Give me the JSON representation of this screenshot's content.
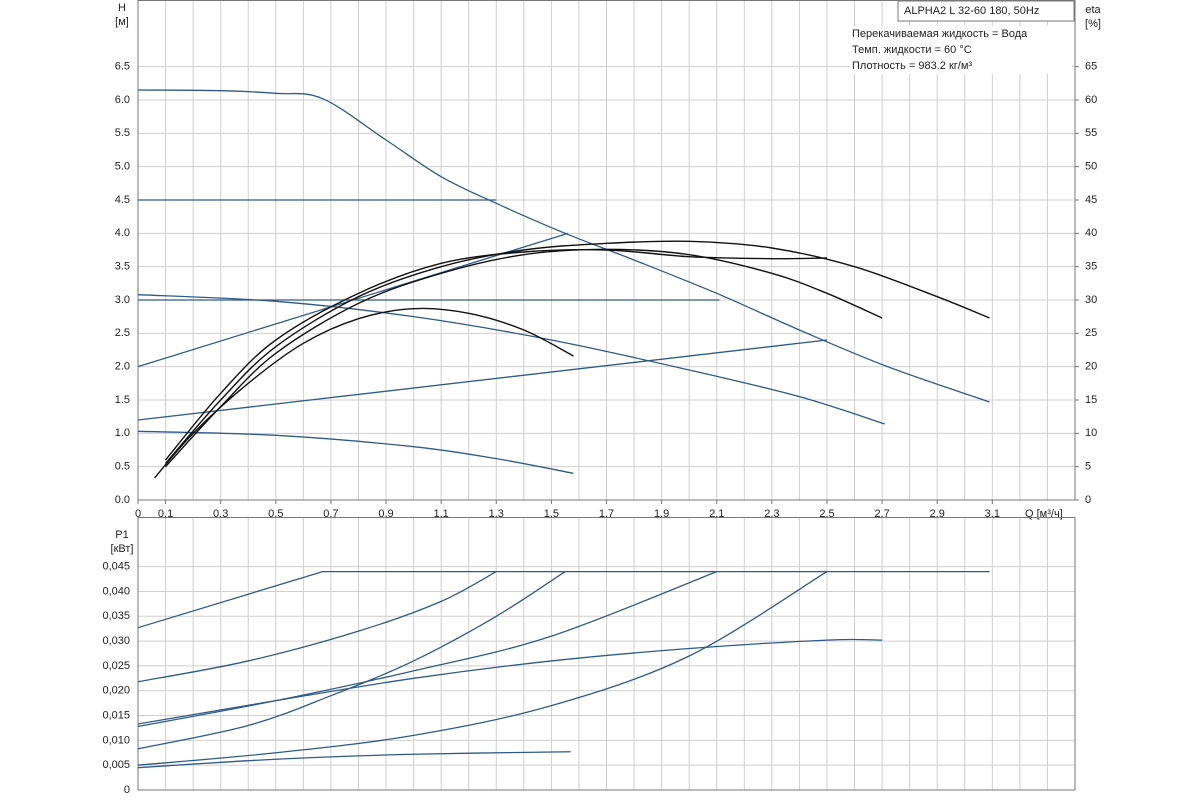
{
  "chart_data": [
    {
      "type": "line",
      "y_label": "H",
      "y_unit": "[м]",
      "y2_label": "eta",
      "y2_unit": "[%]",
      "x_label": "Q [м³/ч]",
      "info_title": "ALPHA2 L 32-60 180, 50Hz",
      "info_lines": [
        "Перекачиваемая жидкость = Вода",
        "Темп. жидкости = 60 °C",
        "Плотность = 983.2 кг/м³"
      ],
      "xlim": [
        0,
        3.4
      ],
      "ylim": [
        0,
        7.5
      ],
      "y2lim": [
        0,
        75
      ],
      "xticks": [
        0,
        {
          "value": 0.1,
          "label": "0,1"
        },
        {
          "value": 0.3,
          "label": "0,3"
        },
        {
          "value": 0.5,
          "label": "0,5"
        },
        {
          "value": 0.7,
          "label": "0,7"
        },
        {
          "value": 0.9,
          "label": "0,9"
        },
        {
          "value": 1.1,
          "label": "1,1"
        },
        {
          "value": 1.3,
          "label": "1,3"
        },
        {
          "value": 1.5,
          "label": "1,5"
        },
        {
          "value": 1.7,
          "label": "1,7"
        },
        {
          "value": 1.9,
          "label": "1,9"
        },
        {
          "value": 2.1,
          "label": "2,1"
        },
        {
          "value": 2.3,
          "label": "2,3"
        },
        {
          "value": 2.5,
          "label": "2,5"
        },
        {
          "value": 2.7,
          "label": "2,7"
        },
        {
          "value": 2.9,
          "label": "2,9"
        },
        {
          "value": 3.1,
          "label": "3,1"
        }
      ],
      "xgrid": [
        0.1,
        0.2,
        0.3,
        0.4,
        0.5,
        0.6,
        0.7,
        0.8,
        0.9,
        1.0,
        1.1,
        1.2,
        1.3,
        1.4,
        1.5,
        1.6,
        1.7,
        1.8,
        1.9,
        2.0,
        2.1,
        2.2,
        2.3,
        2.4,
        2.5,
        2.6,
        2.7,
        2.8,
        2.9,
        3.0,
        3.1,
        3.2,
        3.3
      ],
      "yticks": [
        {
          "value": 0,
          "label": "0.0"
        },
        0.5,
        {
          "value": 1,
          "label": "1.0"
        },
        1.5,
        {
          "value": 2,
          "label": "2.0"
        },
        2.5,
        {
          "value": 3,
          "label": "3.0"
        },
        3.5,
        {
          "value": 4,
          "label": "4.0"
        },
        4.5,
        {
          "value": 5,
          "label": "5.0"
        },
        5.5,
        {
          "value": 6,
          "label": "6.0"
        },
        6.5
      ],
      "y2ticks": [
        0,
        5,
        10,
        15,
        20,
        25,
        30,
        35,
        40,
        45,
        50,
        55,
        60,
        65
      ],
      "grid": true,
      "series": [
        {
          "color": "#2f5a86",
          "x": [
            0,
            0.3,
            0.5,
            0.67,
            0.9,
            1.1,
            1.3,
            1.55,
            1.8,
            2.1,
            2.4,
            2.72,
            3.09
          ],
          "values": [
            6.15,
            6.14,
            6.1,
            6.02,
            5.4,
            4.85,
            4.45,
            4.0,
            3.6,
            3.1,
            2.55,
            2.0,
            1.47
          ]
        },
        {
          "color": "#2f5a86",
          "x": [
            0,
            1.3
          ],
          "values": [
            4.5,
            4.5
          ]
        },
        {
          "color": "#2f5a86",
          "x": [
            0,
            2.11
          ],
          "values": [
            3.0,
            3.0
          ]
        },
        {
          "color": "#2f5a86",
          "x": [
            0,
            1.56
          ],
          "values": [
            2.0,
            4.0
          ]
        },
        {
          "color": "#2f5a86",
          "x": [
            0,
            2.5
          ],
          "values": [
            1.2,
            2.4
          ]
        },
        {
          "color": "#2f5a86",
          "x": [
            0,
            0.5,
            1.0,
            1.5,
            2.0,
            2.4,
            2.71
          ],
          "values": [
            3.08,
            2.98,
            2.75,
            2.4,
            1.95,
            1.55,
            1.14
          ]
        },
        {
          "color": "#2f5a86",
          "x": [
            0,
            0.5,
            1.0,
            1.3,
            1.58
          ],
          "values": [
            1.03,
            0.97,
            0.8,
            0.62,
            0.4
          ]
        },
        {
          "color": "#111111",
          "axis": "y2",
          "x": [
            0.06,
            0.2,
            0.4,
            0.6,
            0.8,
            1.0,
            1.2,
            1.4,
            1.58
          ],
          "values": [
            3.3,
            10,
            17.5,
            23.5,
            27.2,
            28.7,
            28,
            25.5,
            21.6
          ]
        },
        {
          "color": "#111111",
          "axis": "y2",
          "x": [
            0.1,
            0.3,
            0.5,
            0.8,
            1.1,
            1.4,
            1.7,
            2.0,
            2.3,
            2.5,
            2.7
          ],
          "values": [
            5,
            14,
            22,
            29.5,
            34,
            36.8,
            37.6,
            36.8,
            34,
            31,
            27.3
          ]
        },
        {
          "color": "#111111",
          "axis": "y2",
          "x": [
            0.1,
            0.3,
            0.5,
            0.8,
            1.1,
            1.4,
            1.7,
            2.0,
            2.3,
            2.5
          ],
          "values": [
            6,
            16,
            24,
            31,
            35.5,
            37.2,
            37.5,
            36.5,
            36.2,
            36.3
          ]
        },
        {
          "color": "#111111",
          "axis": "y2",
          "x": [
            0.1,
            0.3,
            0.5,
            0.8,
            1.1,
            1.4,
            1.7,
            2.0,
            2.3,
            2.6,
            2.9,
            3.09
          ],
          "values": [
            5.5,
            15,
            23,
            30.5,
            35,
            37.5,
            38.5,
            38.8,
            37.8,
            35,
            30.5,
            27.3
          ]
        }
      ]
    },
    {
      "type": "line",
      "y_label": "P1",
      "y_unit": "[кВт]",
      "xlim": [
        0,
        3.4
      ],
      "ylim": [
        0,
        0.055
      ],
      "xgrid": [
        0.1,
        0.2,
        0.3,
        0.4,
        0.5,
        0.6,
        0.7,
        0.8,
        0.9,
        1.0,
        1.1,
        1.2,
        1.3,
        1.4,
        1.5,
        1.6,
        1.7,
        1.8,
        1.9,
        2.0,
        2.1,
        2.2,
        2.3,
        2.4,
        2.5,
        2.6,
        2.7,
        2.8,
        2.9,
        3.0,
        3.1,
        3.2,
        3.3
      ],
      "yticks": [
        0,
        {
          "value": 0.005,
          "label": "0,005"
        },
        {
          "value": 0.01,
          "label": "0,010"
        },
        {
          "value": 0.015,
          "label": "0,015"
        },
        {
          "value": 0.02,
          "label": "0,020"
        },
        {
          "value": 0.025,
          "label": "0,025"
        },
        {
          "value": 0.03,
          "label": "0,030"
        },
        {
          "value": 0.035,
          "label": "0,035"
        },
        {
          "value": 0.04,
          "label": "0,040"
        },
        {
          "value": 0.045,
          "label": "0,045"
        }
      ],
      "grid": true,
      "series": [
        {
          "color": "#2f5a86",
          "x": [
            0.67,
            3.09
          ],
          "values": [
            0.044,
            0.044
          ]
        },
        {
          "color": "#2f5a86",
          "x": [
            0,
            0.67
          ],
          "values": [
            0.0327,
            0.044
          ]
        },
        {
          "color": "#2f5a86",
          "x": [
            0,
            0.4,
            0.8,
            1.1,
            1.3
          ],
          "values": [
            0.0218,
            0.026,
            0.032,
            0.038,
            0.044
          ]
        },
        {
          "color": "#2f5a86",
          "x": [
            0,
            0.4,
            0.7,
            1.0,
            1.3,
            1.55
          ],
          "values": [
            0.0083,
            0.013,
            0.019,
            0.026,
            0.035,
            0.044
          ]
        },
        {
          "color": "#2f5a86",
          "x": [
            0,
            0.5,
            1.0,
            1.5,
            2.1
          ],
          "values": [
            0.0128,
            0.018,
            0.024,
            0.031,
            0.044
          ]
        },
        {
          "color": "#2f5a86",
          "x": [
            0,
            0.5,
            1.0,
            1.5,
            2.0,
            2.5,
            2.7
          ],
          "values": [
            0.0133,
            0.018,
            0.0225,
            0.026,
            0.0285,
            0.0302,
            0.0302
          ]
        },
        {
          "color": "#2f5a86",
          "x": [
            0,
            0.5,
            1.0,
            1.5,
            2.0,
            2.5
          ],
          "values": [
            0.005,
            0.0075,
            0.011,
            0.017,
            0.027,
            0.044
          ]
        },
        {
          "color": "#2f5a86",
          "x": [
            0,
            0.5,
            1.0,
            1.57
          ],
          "values": [
            0.0045,
            0.0062,
            0.0072,
            0.0077
          ]
        }
      ]
    }
  ]
}
